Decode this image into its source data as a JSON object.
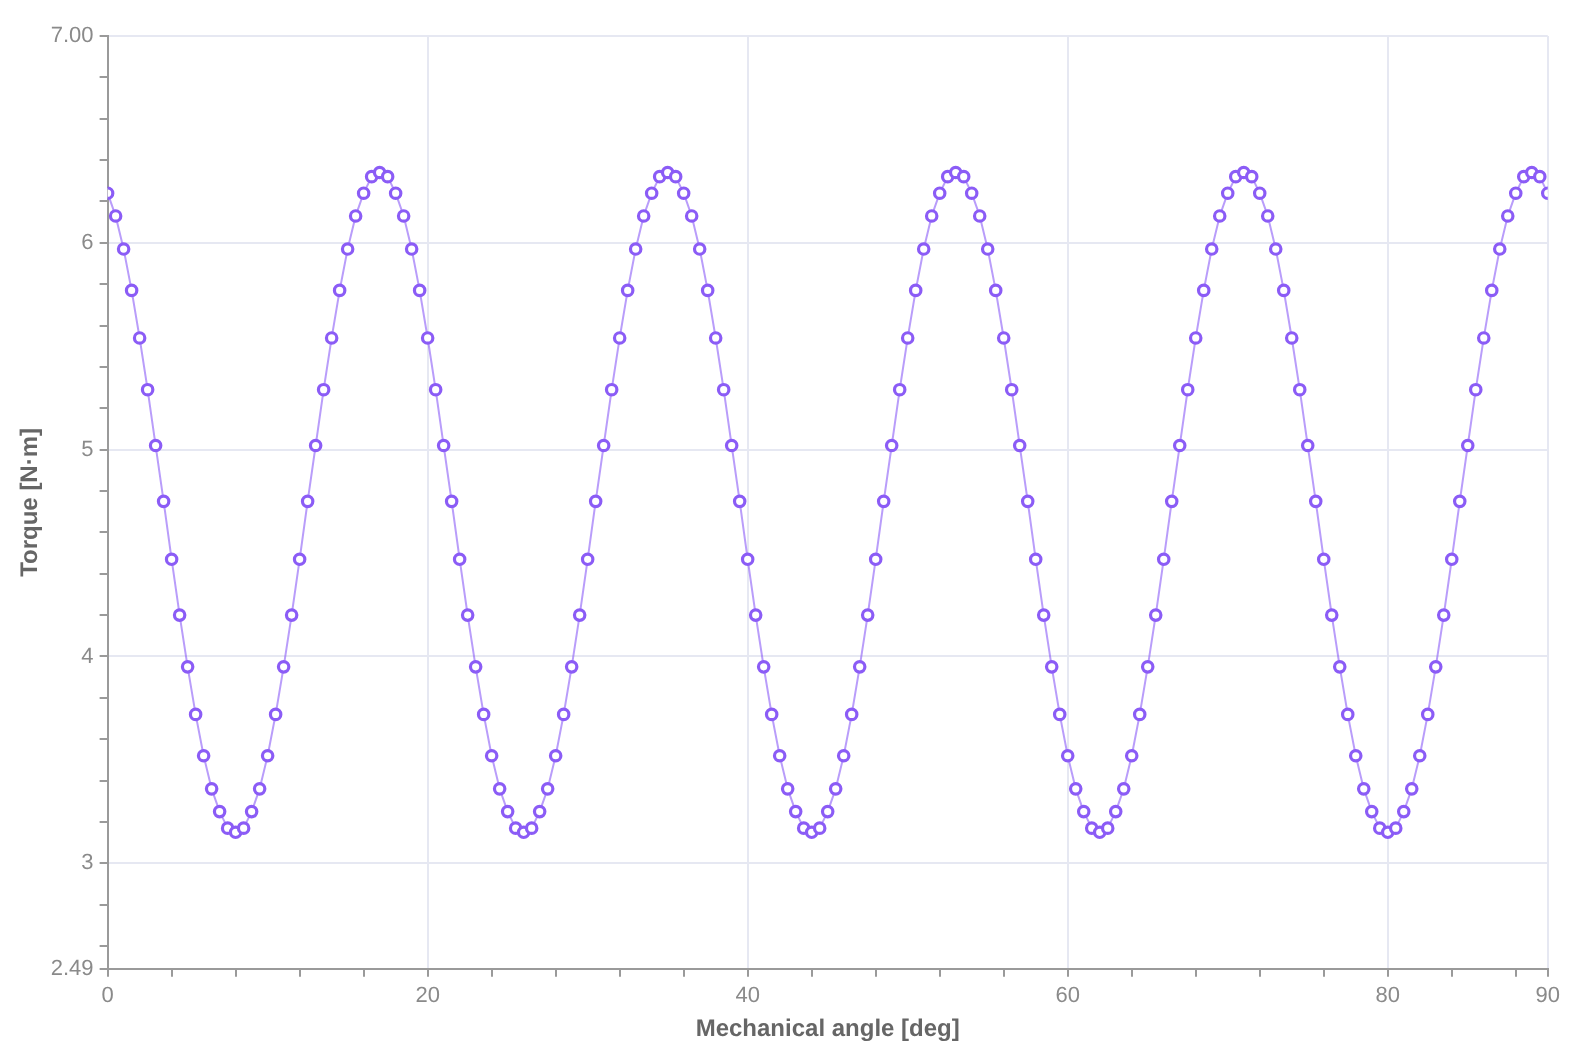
{
  "chart_data": {
    "type": "line",
    "xlabel": "Mechanical angle [deg]",
    "ylabel": "Torque [N·m]",
    "xlim": [
      0,
      90
    ],
    "xticks": [
      0,
      {
        "value": 4,
        "label": null
      },
      {
        "value": 8,
        "label": null
      },
      {
        "value": 12,
        "label": null
      },
      {
        "value": 16,
        "label": null
      },
      20,
      {
        "value": 24,
        "label": null
      },
      {
        "value": 28,
        "label": null
      },
      {
        "value": 32,
        "label": null
      },
      {
        "value": 36,
        "label": null
      },
      40,
      {
        "value": 44,
        "label": null
      },
      {
        "value": 48,
        "label": null
      },
      {
        "value": 52,
        "label": null
      },
      {
        "value": 56,
        "label": null
      },
      60,
      {
        "value": 64,
        "label": null
      },
      {
        "value": 68,
        "label": null
      },
      {
        "value": 72,
        "label": null
      },
      {
        "value": 76,
        "label": null
      },
      80,
      {
        "value": 84,
        "label": null
      },
      {
        "value": 88,
        "label": null
      },
      90
    ],
    "ylim": [
      2.49,
      7.0
    ],
    "yticks": [
      {
        "value": 2.49,
        "label": "2.49"
      },
      {
        "value": 2.6,
        "label": null
      },
      {
        "value": 2.8,
        "label": null
      },
      3,
      {
        "value": 3.2,
        "label": null
      },
      {
        "value": 3.4,
        "label": null
      },
      {
        "value": 3.6,
        "label": null
      },
      {
        "value": 3.8,
        "label": null
      },
      4,
      {
        "value": 4.2,
        "label": null
      },
      {
        "value": 4.4,
        "label": null
      },
      {
        "value": 4.6,
        "label": null
      },
      {
        "value": 4.8,
        "label": null
      },
      5,
      {
        "value": 5.2,
        "label": null
      },
      {
        "value": 5.4,
        "label": null
      },
      {
        "value": 5.6,
        "label": null
      },
      {
        "value": 5.8,
        "label": null
      },
      6,
      {
        "value": 6.2,
        "label": null
      },
      {
        "value": 6.4,
        "label": null
      },
      {
        "value": 6.6,
        "label": null
      },
      {
        "value": 6.8,
        "label": null
      },
      {
        "value": 7.0,
        "label": "7.00"
      }
    ],
    "grid": true,
    "marker": "circle",
    "line_style": "solid",
    "legend": false,
    "x": [
      0,
      0.5,
      1,
      1.5,
      2,
      2.5,
      3,
      3.5,
      4,
      4.5,
      5,
      5.5,
      6,
      6.5,
      7,
      7.5,
      8,
      8.5,
      9,
      9.5,
      10,
      10.5,
      11,
      11.5,
      12,
      12.5,
      13,
      13.5,
      14,
      14.5,
      15,
      15.5,
      16,
      16.5,
      17,
      17.5,
      18,
      18.5,
      19,
      19.5,
      20,
      20.5,
      21,
      21.5,
      22,
      22.5,
      23,
      23.5,
      24,
      24.5,
      25,
      25.5,
      26,
      26.5,
      27,
      27.5,
      28,
      28.5,
      29,
      29.5,
      30,
      30.5,
      31,
      31.5,
      32,
      32.5,
      33,
      33.5,
      34,
      34.5,
      35,
      35.5,
      36,
      36.5,
      37,
      37.5,
      38,
      38.5,
      39,
      39.5,
      40,
      40.5,
      41,
      41.5,
      42,
      42.5,
      43,
      43.5,
      44,
      44.5,
      45,
      45.5,
      46,
      46.5,
      47,
      47.5,
      48,
      48.5,
      49,
      49.5,
      50,
      50.5,
      51,
      51.5,
      52,
      52.5,
      53,
      53.5,
      54,
      54.5,
      55,
      55.5,
      56,
      56.5,
      57,
      57.5,
      58,
      58.5,
      59,
      59.5,
      60,
      60.5,
      61,
      61.5,
      62,
      62.5,
      63,
      63.5,
      64,
      64.5,
      65,
      65.5,
      66,
      66.5,
      67,
      67.5,
      68,
      68.5,
      69,
      69.5,
      70,
      70.5,
      71,
      71.5,
      72,
      72.5,
      73,
      73.5,
      74,
      74.5,
      75,
      75.5,
      76,
      76.5,
      77,
      77.5,
      78,
      78.5,
      79,
      79.5,
      80,
      80.5,
      81,
      81.5,
      82,
      82.5,
      83,
      83.5,
      84,
      84.5,
      85,
      85.5,
      86,
      86.5,
      87,
      87.5,
      88,
      88.5,
      89,
      89.5,
      90
    ],
    "series": [
      {
        "color": "#8b5cf6",
        "values": [
          6.24,
          6.13,
          5.97,
          5.77,
          5.54,
          5.29,
          5.02,
          4.75,
          4.47,
          4.2,
          3.95,
          3.72,
          3.52,
          3.36,
          3.25,
          3.17,
          3.15,
          3.17,
          3.25,
          3.36,
          3.52,
          3.72,
          3.95,
          4.2,
          4.47,
          4.75,
          5.02,
          5.29,
          5.54,
          5.77,
          5.97,
          6.13,
          6.24,
          6.32,
          6.34,
          6.32,
          6.24,
          6.13,
          5.97,
          5.77,
          5.54,
          5.29,
          5.02,
          4.75,
          4.47,
          4.2,
          3.95,
          3.72,
          3.52,
          3.36,
          3.25,
          3.17,
          3.15,
          3.17,
          3.25,
          3.36,
          3.52,
          3.72,
          3.95,
          4.2,
          4.47,
          4.75,
          5.02,
          5.29,
          5.54,
          5.77,
          5.97,
          6.13,
          6.24,
          6.32,
          6.34,
          6.32,
          6.24,
          6.13,
          5.97,
          5.77,
          5.54,
          5.29,
          5.02,
          4.75,
          4.47,
          4.2,
          3.95,
          3.72,
          3.52,
          3.36,
          3.25,
          3.17,
          3.15,
          3.17,
          3.25,
          3.36,
          3.52,
          3.72,
          3.95,
          4.2,
          4.47,
          4.75,
          5.02,
          5.29,
          5.54,
          5.77,
          5.97,
          6.13,
          6.24,
          6.32,
          6.34,
          6.32,
          6.24,
          6.13,
          5.97,
          5.77,
          5.54,
          5.29,
          5.02,
          4.75,
          4.47,
          4.2,
          3.95,
          3.72,
          3.52,
          3.36,
          3.25,
          3.17,
          3.15,
          3.17,
          3.25,
          3.36,
          3.52,
          3.72,
          3.95,
          4.2,
          4.47,
          4.75,
          5.02,
          5.29,
          5.54,
          5.77,
          5.97,
          6.13,
          6.24,
          6.32,
          6.34,
          6.32,
          6.24,
          6.13,
          5.97,
          5.77,
          5.54,
          5.29,
          5.02,
          4.75,
          4.47,
          4.2,
          3.95,
          3.72,
          3.52,
          3.36,
          3.25,
          3.17,
          3.15,
          3.17,
          3.25,
          3.36,
          3.52,
          3.72,
          3.95,
          4.2,
          4.47,
          4.75,
          5.02,
          5.29,
          5.54,
          5.77,
          5.97,
          6.13,
          6.24,
          6.32,
          6.34,
          6.32,
          6.24
        ]
      }
    ]
  }
}
